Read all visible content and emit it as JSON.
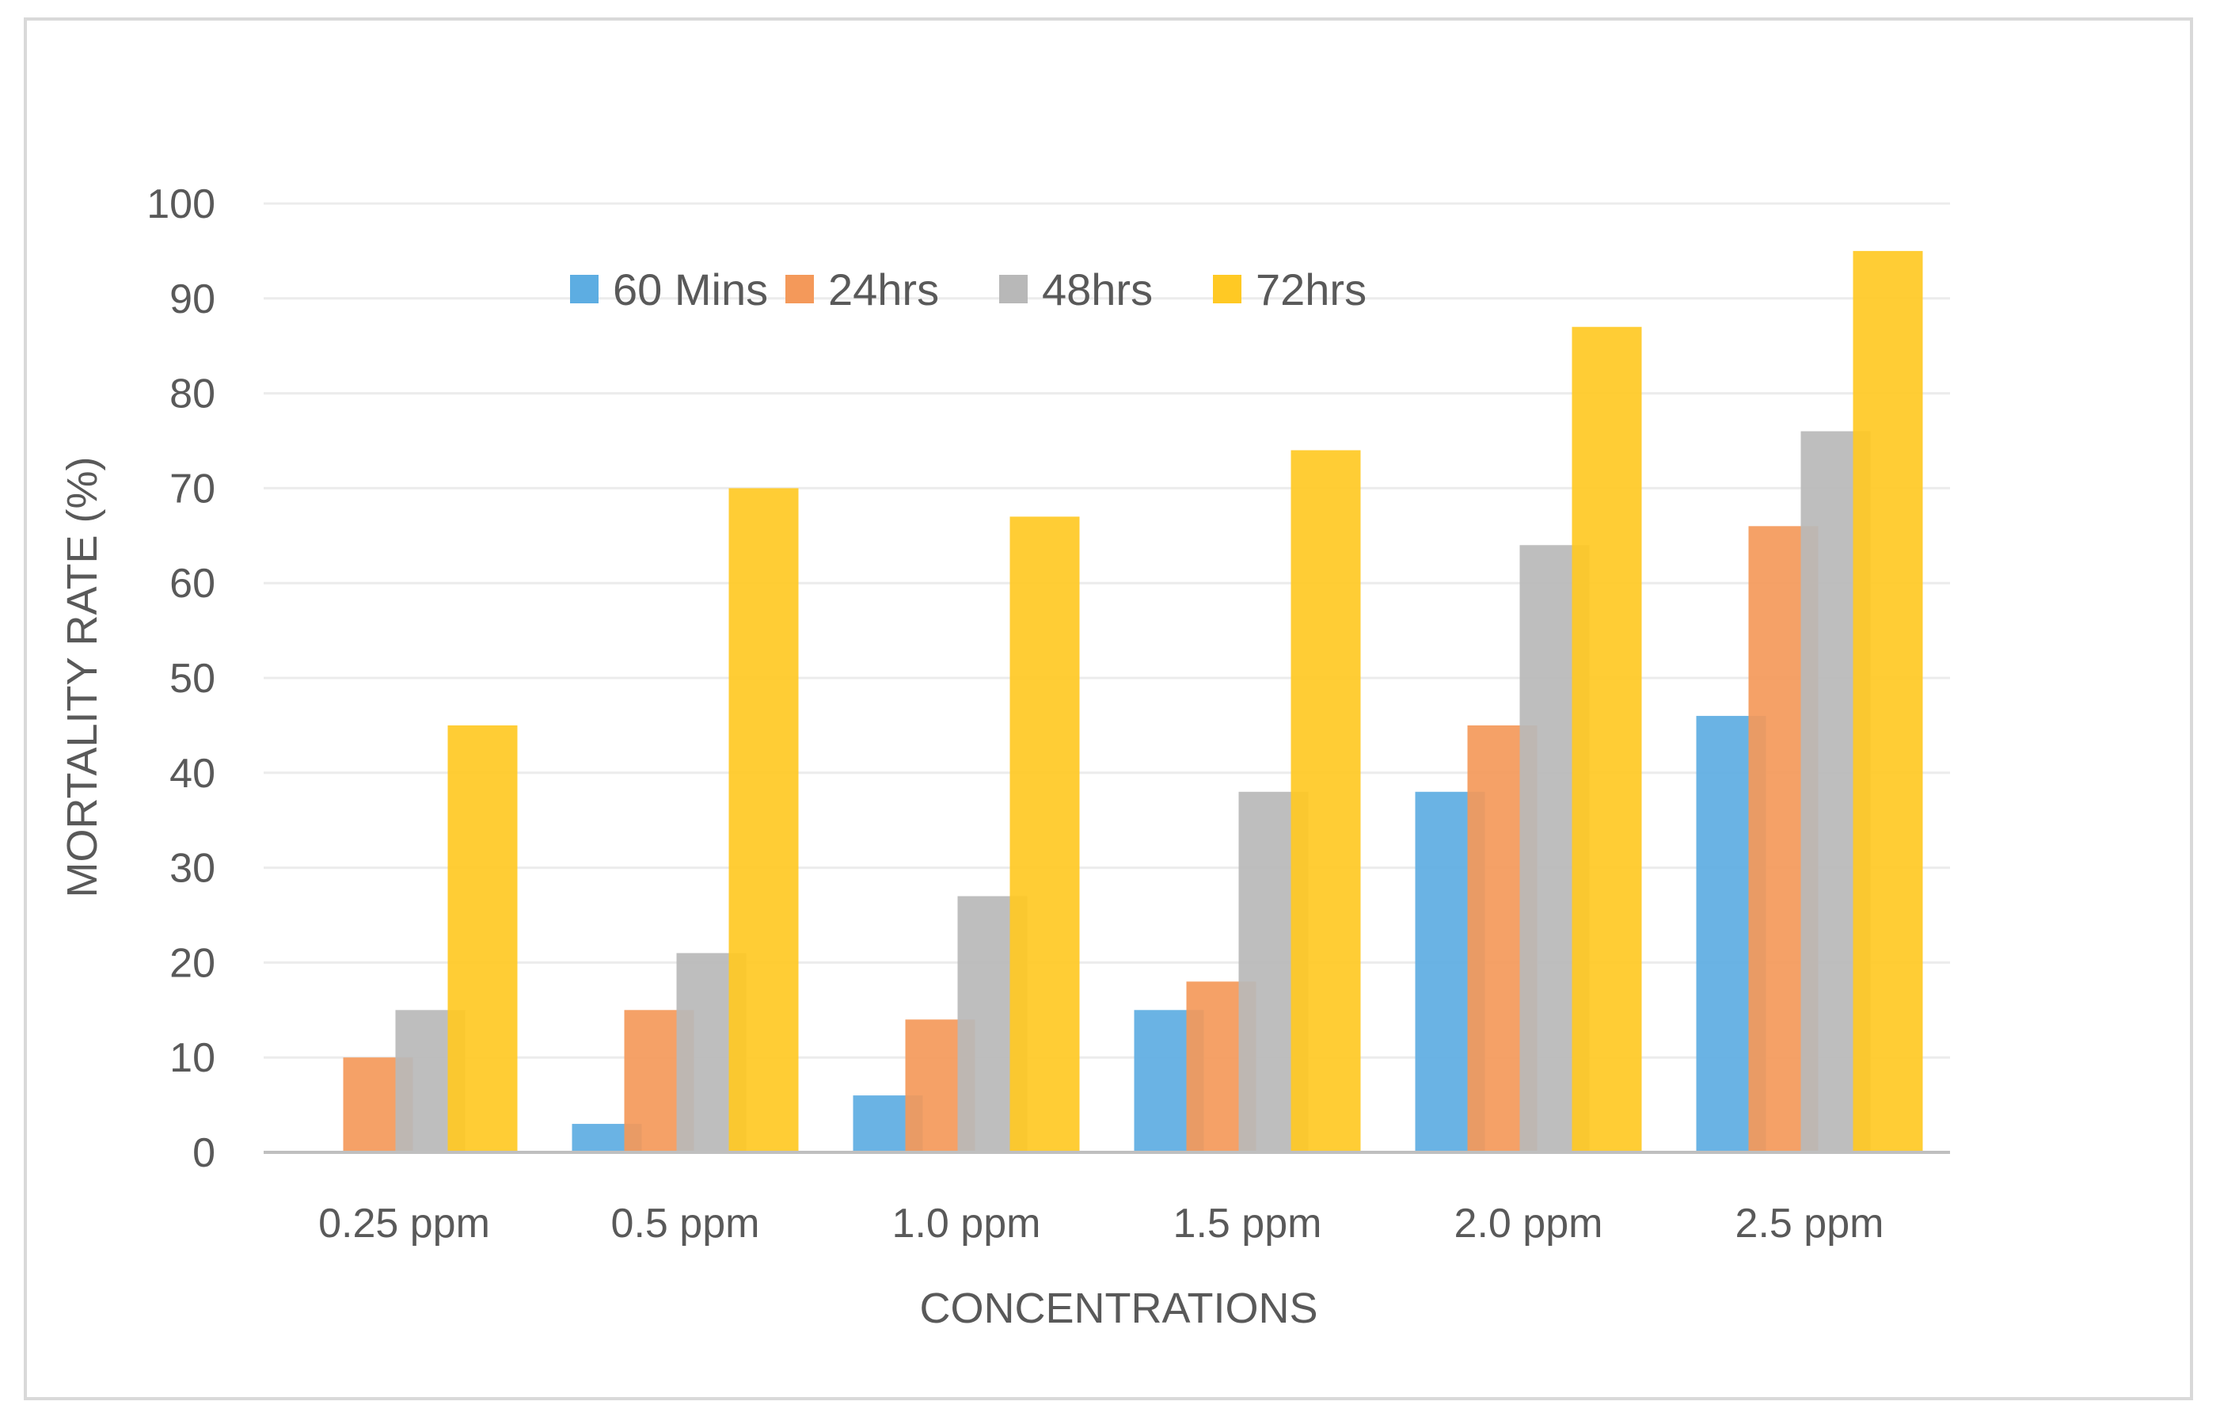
{
  "chart_data": {
    "type": "bar",
    "title": "",
    "xlabel": "CONCENTRATIONS",
    "ylabel": "MORTALITY RATE  (%)",
    "ylim": [
      0,
      100
    ],
    "ytick_step": 10,
    "grid": true,
    "legend_position": "top-center",
    "categories": [
      "0.25 ppm",
      "0.5 ppm",
      "1.0 ppm",
      "1.5 ppm",
      "2.0 ppm",
      "2.5 ppm"
    ],
    "series": [
      {
        "name": "60 Mins",
        "color": "#5DADE2",
        "values": [
          0,
          3,
          6,
          15,
          38,
          46
        ]
      },
      {
        "name": "24hrs",
        "color": "#F4995A",
        "values": [
          10,
          15,
          14,
          18,
          45,
          66
        ]
      },
      {
        "name": "48hrs",
        "color": "#B8B8B8",
        "values": [
          15,
          21,
          27,
          38,
          64,
          76
        ]
      },
      {
        "name": "72hrs",
        "color": "#FFC924",
        "values": [
          45,
          70,
          67,
          74,
          87,
          95
        ]
      }
    ]
  }
}
